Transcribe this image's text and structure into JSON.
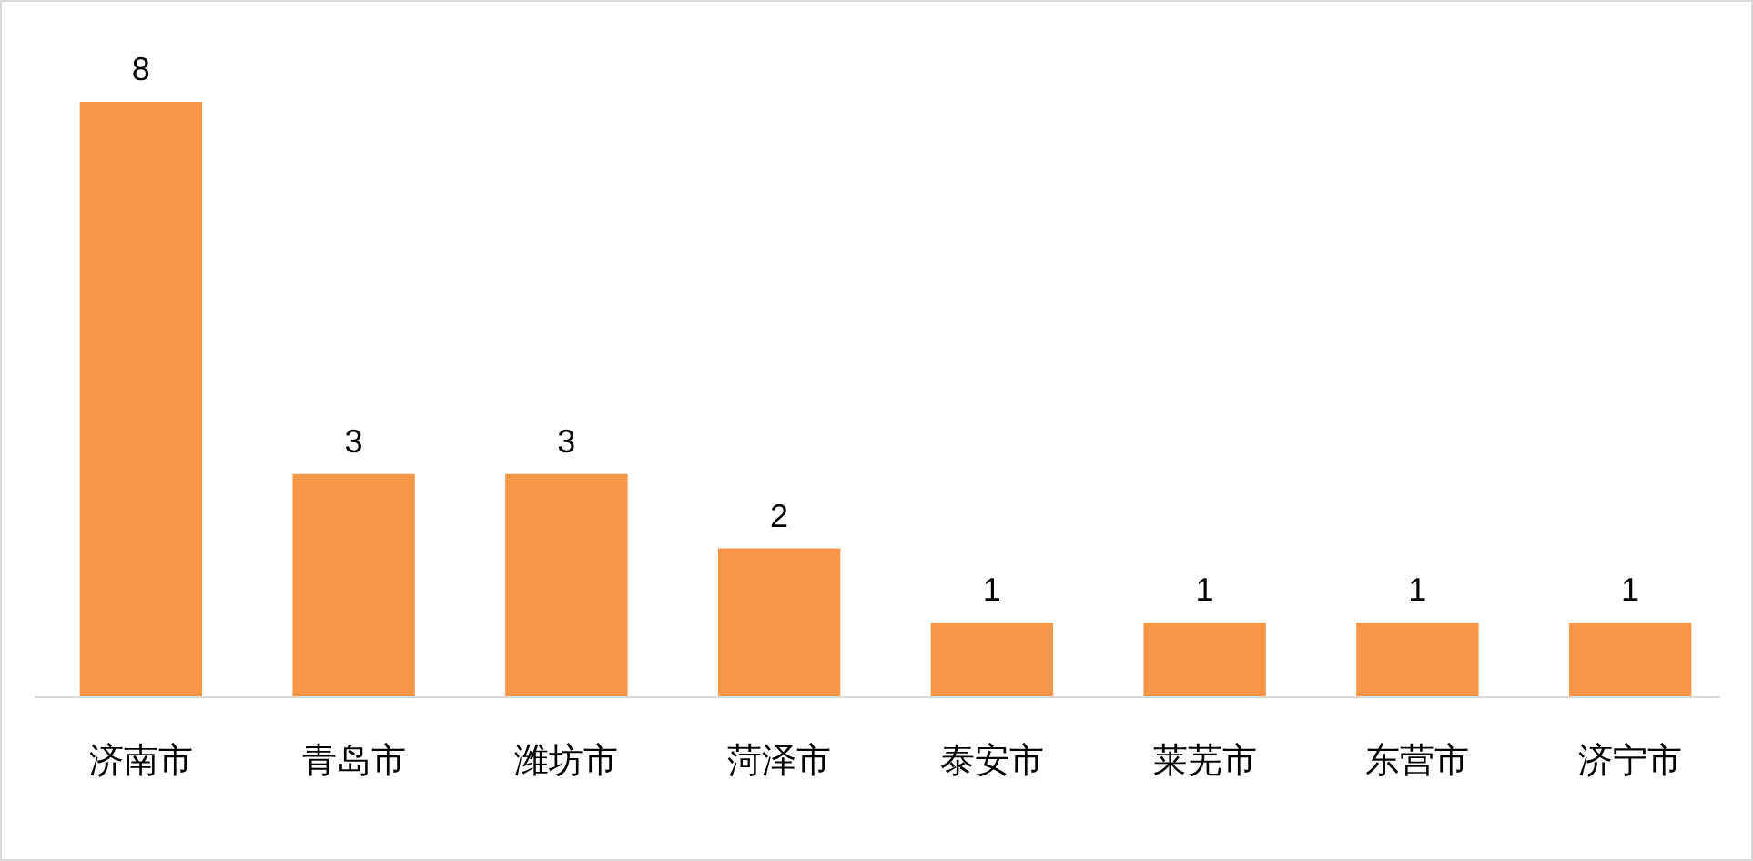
{
  "chart_data": {
    "type": "bar",
    "categories": [
      "济南市",
      "青岛市",
      "潍坊市",
      "菏泽市",
      "泰安市",
      "莱芜市",
      "东营市",
      "济宁市"
    ],
    "values": [
      8,
      3,
      3,
      2,
      1,
      1,
      1,
      1
    ],
    "color": "#f79646",
    "data_labels": true
  }
}
